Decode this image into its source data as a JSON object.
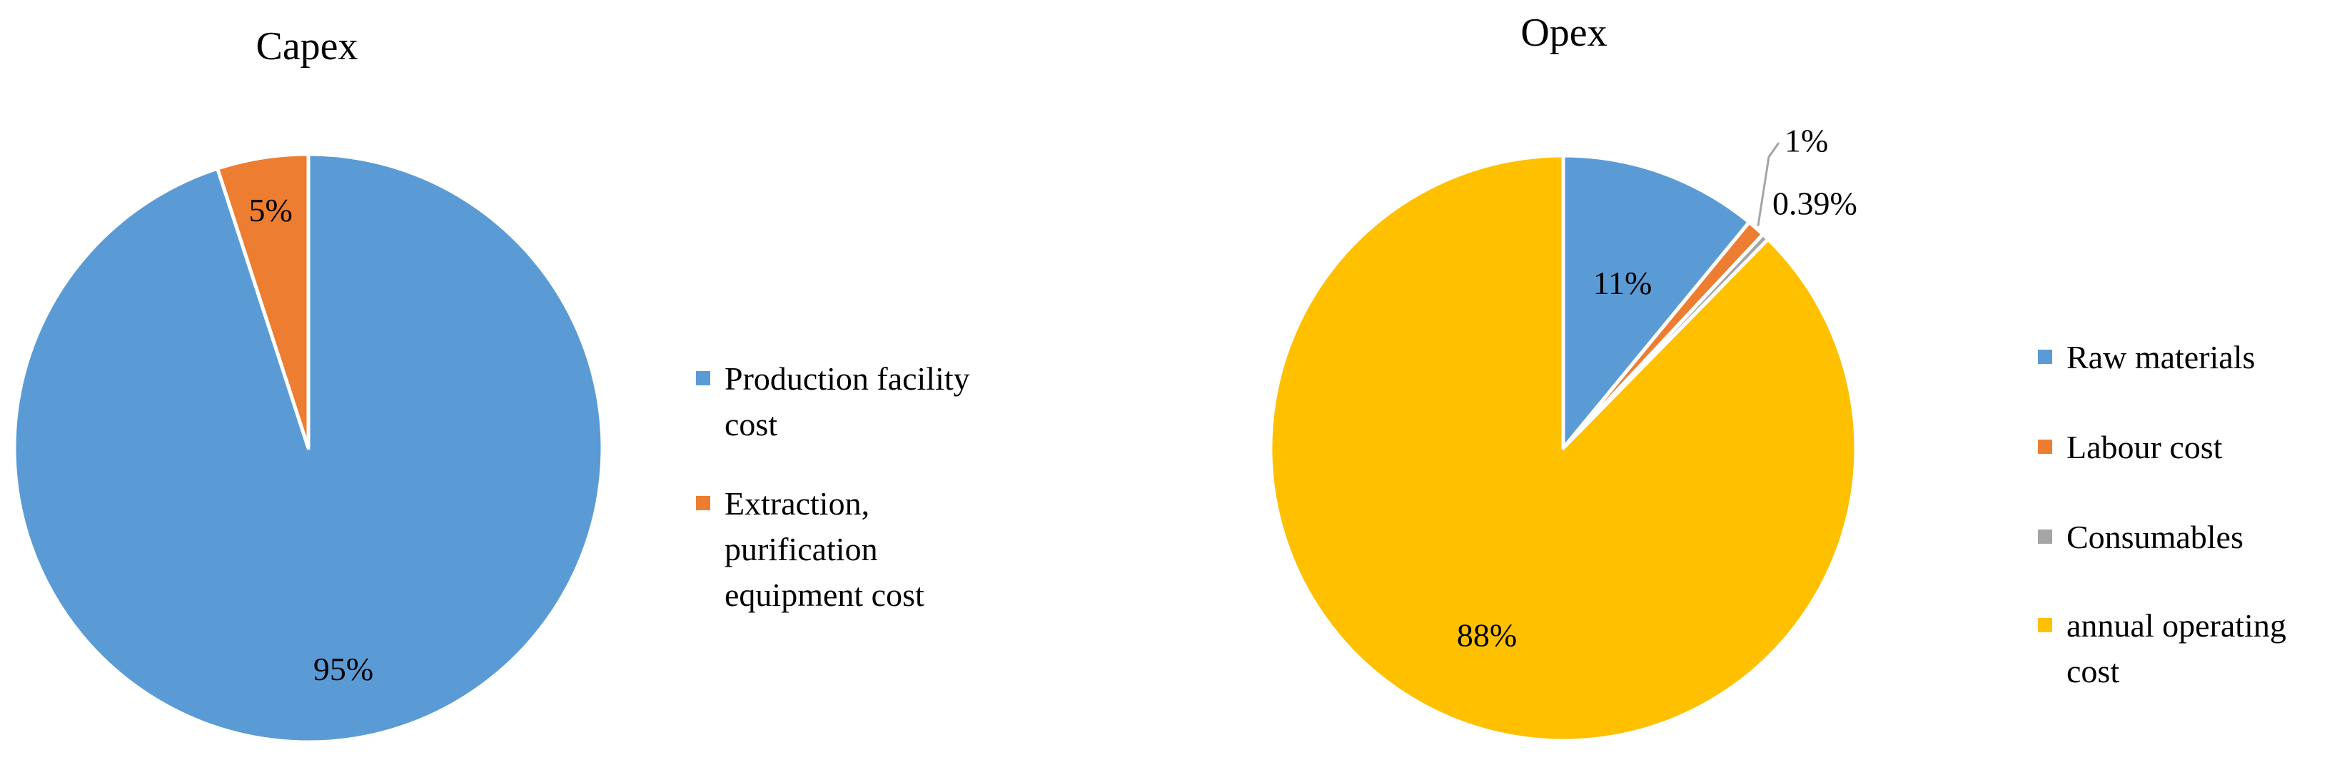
{
  "chart_data": [
    {
      "type": "pie",
      "title": "Capex",
      "categories": [
        "Production facility cost",
        "Extraction, purification equipment cost"
      ],
      "values": [
        95,
        5
      ],
      "labels": [
        "95%",
        "5%"
      ],
      "colors": [
        "#5B9BD5",
        "#ED7D31"
      ],
      "legend_lines": [
        [
          "Production facility",
          "cost"
        ],
        [
          "Extraction,",
          "purification",
          "equipment cost"
        ]
      ],
      "legend_position": "right"
    },
    {
      "type": "pie",
      "title": "Opex",
      "categories": [
        "Raw materials",
        "Labour cost",
        "Consumables",
        "annual operating cost"
      ],
      "values": [
        11,
        1,
        0.39,
        88
      ],
      "labels": [
        "11%",
        "1%",
        "0.39%",
        "88%"
      ],
      "colors": [
        "#5B9BD5",
        "#ED7D31",
        "#A5A5A5",
        "#FFC000"
      ],
      "legend_lines": [
        [
          "Raw materials"
        ],
        [
          "Labour cost"
        ],
        [
          "Consumables"
        ],
        [
          "annual operating",
          "cost"
        ]
      ],
      "legend_position": "right"
    }
  ]
}
